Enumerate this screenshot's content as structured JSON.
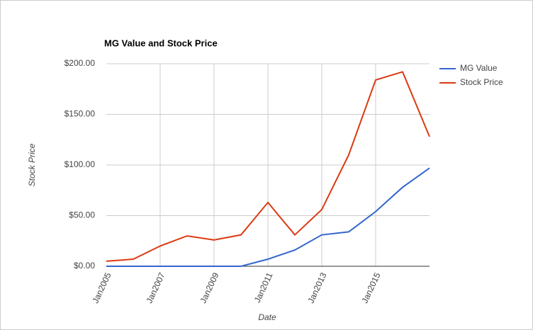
{
  "chart_data": {
    "type": "line",
    "title": "MG Value and Stock Price",
    "x_label": "Date",
    "y_label": "Stock Price",
    "categories": [
      "Jan2005",
      null,
      "Jan2007",
      null,
      "Jan2009",
      null,
      "Jan2011",
      null,
      "Jan2013",
      null,
      "Jan2015",
      null,
      null
    ],
    "series": [
      {
        "name": "MG Value",
        "color": "#3366cc",
        "values": [
          0,
          0,
          0,
          0,
          0,
          0,
          7,
          16,
          31,
          34,
          54,
          78,
          97
        ]
      },
      {
        "name": "Stock Price",
        "color": "#dc3912",
        "values": [
          5,
          7,
          20,
          30,
          26,
          31,
          63,
          31,
          56,
          110,
          184,
          192,
          128
        ]
      }
    ],
    "ylim": [
      0,
      200
    ],
    "yticks": [
      {
        "value": 0,
        "label": "$0.00"
      },
      {
        "value": 50,
        "label": "$50.00"
      },
      {
        "value": 100,
        "label": "$100.00"
      },
      {
        "value": 150,
        "label": "$150.00"
      },
      {
        "value": 200,
        "label": "$200.00"
      }
    ],
    "grid": true,
    "legend": "right"
  }
}
